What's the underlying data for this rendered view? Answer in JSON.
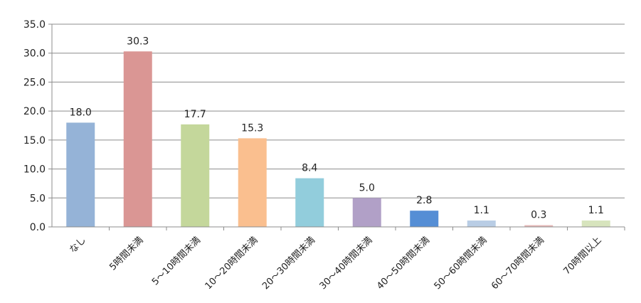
{
  "chart_data": {
    "type": "bar",
    "categories": [
      "なし",
      "5時間未満",
      "5～10時間未満",
      "10～20時間未満",
      "20～30時間未満",
      "30～40時間未満",
      "40～50時間未満",
      "50～60時間未満",
      "60～70時間未満",
      "70時間以上"
    ],
    "values": [
      18.0,
      30.3,
      17.7,
      15.3,
      8.4,
      5.0,
      2.8,
      1.1,
      0.3,
      1.1
    ],
    "value_labels": [
      "18.0",
      "30.3",
      "17.7",
      "15.3",
      "8.4",
      "5.0",
      "2.8",
      "1.1",
      "0.3",
      "1.1"
    ],
    "colors": [
      "#95b3d7",
      "#da9694",
      "#c4d79b",
      "#fabf8f",
      "#92cddc",
      "#b1a0c7",
      "#558ed5",
      "#b9cde5",
      "#e6b9b8",
      "#d7e4bd"
    ],
    "ylim": [
      0,
      35
    ],
    "yticks": [
      "0.0",
      "5.0",
      "10.0",
      "15.0",
      "20.0",
      "25.0",
      "30.0",
      "35.0"
    ],
    "grid": true,
    "legend": "none",
    "title": "",
    "xlabel": "",
    "ylabel": ""
  }
}
